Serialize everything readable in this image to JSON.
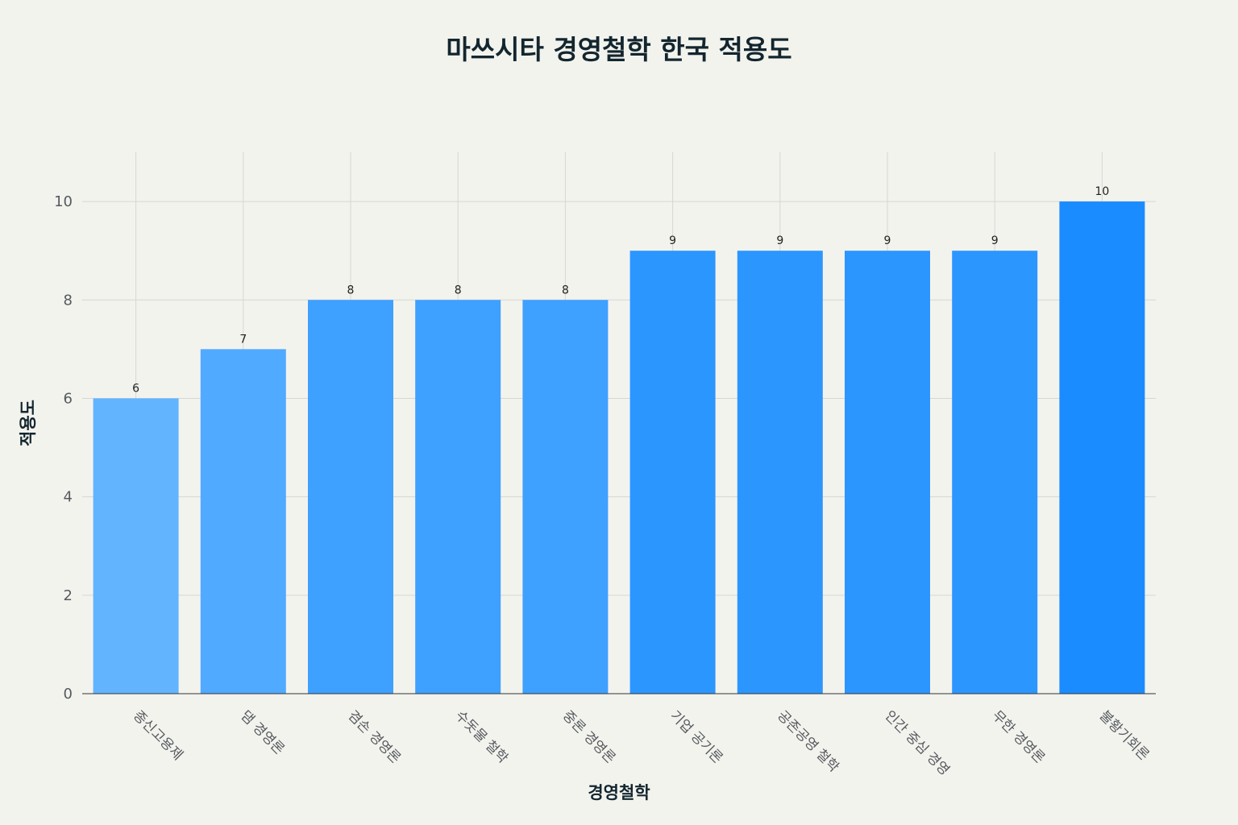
{
  "chart_data": {
    "type": "bar",
    "title": "마쓰시타 경영철학 한국 적용도",
    "xlabel": "경영철학",
    "ylabel": "적용도",
    "categories": [
      "종신고용제",
      "댐 경영론",
      "겸손 경영론",
      "수돗물 철학",
      "중론 경영론",
      "기업 공기론",
      "공존공영 철학",
      "인간 중심 경영",
      "무한 경영론",
      "불황기회론"
    ],
    "values": [
      6,
      7,
      8,
      8,
      8,
      9,
      9,
      9,
      9,
      10
    ],
    "ylim": [
      0,
      11
    ],
    "yticks": [
      0,
      2,
      4,
      6,
      8,
      10
    ],
    "grid": true,
    "legend": "none",
    "colors": {
      "low": "#62b4ff",
      "high": "#1a8cff",
      "background": "#f3f3ee",
      "grid": "#d6d6d2",
      "title": "#13262f"
    }
  }
}
